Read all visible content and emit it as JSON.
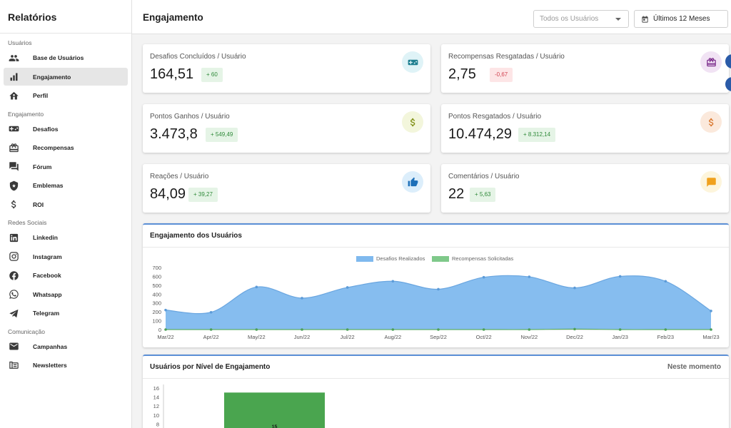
{
  "sidebar": {
    "title": "Relatórios",
    "sections": [
      {
        "label": "Usuários",
        "items": [
          {
            "label": "Base de Usuários",
            "icon": "users-icon"
          },
          {
            "label": "Engajamento",
            "icon": "bar-chart-icon",
            "active": true
          },
          {
            "label": "Perfil",
            "icon": "home-icon"
          }
        ]
      },
      {
        "label": "Engajamento",
        "items": [
          {
            "label": "Desafios",
            "icon": "gamepad-icon"
          },
          {
            "label": "Recompensas",
            "icon": "gift-icon"
          },
          {
            "label": "Fórum",
            "icon": "forum-icon"
          },
          {
            "label": "Emblemas",
            "icon": "shield-icon"
          },
          {
            "label": "ROI",
            "icon": "dollar-icon"
          }
        ]
      },
      {
        "label": "Redes Sociais",
        "items": [
          {
            "label": "Linkedin",
            "icon": "linkedin-icon"
          },
          {
            "label": "Instagram",
            "icon": "instagram-icon"
          },
          {
            "label": "Facebook",
            "icon": "facebook-icon"
          },
          {
            "label": "Whatsapp",
            "icon": "whatsapp-icon"
          },
          {
            "label": "Telegram",
            "icon": "telegram-icon"
          }
        ]
      },
      {
        "label": "Comunicação",
        "items": [
          {
            "label": "Campanhas",
            "icon": "mail-icon"
          },
          {
            "label": "Newsletters",
            "icon": "newsletter-icon"
          }
        ]
      }
    ]
  },
  "header": {
    "title": "Engajamento",
    "user_filter": "Todos os Usuários",
    "period": "Últimos 12 Meses"
  },
  "metrics": [
    {
      "label": "Desafios Concluídos / Usuário",
      "value": "164,51",
      "delta": "+ 60",
      "trend": "up",
      "icon": "gamepad-icon",
      "icon_bg": "#dff3f7",
      "icon_color": "#1f7f90"
    },
    {
      "label": "Recompensas Resgatadas / Usuário",
      "value": "2,75",
      "delta": "-0,67",
      "trend": "down",
      "icon": "gift-icon",
      "icon_bg": "#f1e3f4",
      "icon_color": "#7a2a8a"
    },
    {
      "label": "Pontos Ganhos / Usuário",
      "value": "3.473,8",
      "delta": "+ 549,49",
      "trend": "up",
      "icon": "dollar-icon",
      "icon_bg": "#f3f6dc",
      "icon_color": "#7f8e13"
    },
    {
      "label": "Pontos Resgatados / Usuário",
      "value": "10.474,29",
      "delta": "+ 8.312,14",
      "trend": "up",
      "icon": "dollar-icon",
      "icon_bg": "#fbe9dc",
      "icon_color": "#d9762c"
    },
    {
      "label": "Reações / Usuário",
      "value": "84,09",
      "delta": "+ 39,27",
      "trend": "up",
      "icon": "thumb-up-icon",
      "icon_bg": "#dceefb",
      "icon_color": "#1d6fb8"
    },
    {
      "label": "Comentários / Usuário",
      "value": "22",
      "delta": "+ 5,63",
      "trend": "up",
      "icon": "comment-icon",
      "icon_bg": "#fdf5dc",
      "icon_color": "#f0a11d"
    }
  ],
  "engagement_panel": {
    "title": "Engajamento dos Usuários"
  },
  "levels_panel": {
    "title": "Usuários por Nível de Engajamento",
    "right_label": "Neste momento"
  },
  "chart_data": [
    {
      "type": "area",
      "title": "Engajamento dos Usuários",
      "categories": [
        "Mar/22",
        "Apr/22",
        "May/22",
        "Jun/22",
        "Jul/22",
        "Aug/22",
        "Sep/22",
        "Oct/22",
        "Nov/22",
        "Dec/22",
        "Jan/23",
        "Feb/23",
        "Mar/23"
      ],
      "series": [
        {
          "name": "Desafios Realizados",
          "color": "#7fb9ee",
          "values": [
            220,
            195,
            480,
            355,
            475,
            545,
            455,
            590,
            595,
            470,
            600,
            545,
            210
          ]
        },
        {
          "name": "Recompensas Solicitadas",
          "color": "#7fc98a",
          "values": [
            0,
            0,
            0,
            0,
            0,
            0,
            0,
            0,
            0,
            5,
            0,
            0,
            0
          ]
        }
      ],
      "ylim": [
        0,
        700
      ],
      "yticks": [
        0,
        100,
        200,
        300,
        400,
        500,
        600,
        700
      ],
      "legend": "top",
      "grid": false
    },
    {
      "type": "bar",
      "title": "Usuários por Nível de Engajamento",
      "series": [
        {
          "name": "",
          "color": "#4aa54f",
          "values": [
            15
          ]
        }
      ],
      "data_labels": [
        "15"
      ],
      "yticks": [
        8,
        10,
        12,
        14,
        16
      ],
      "ylim": [
        0,
        16
      ]
    }
  ]
}
